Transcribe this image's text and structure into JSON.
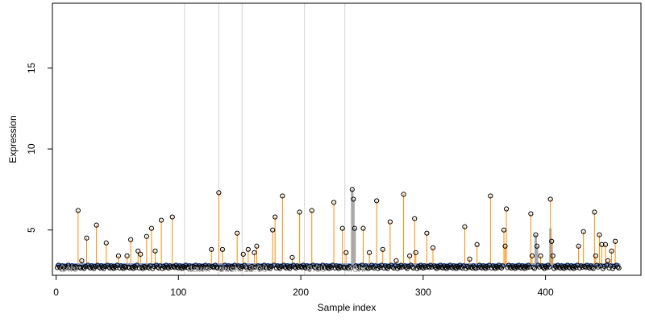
{
  "chart_data": {
    "type": "scatter",
    "xlabel": "Sample index",
    "ylabel": "Expression",
    "xlim": [
      -3,
      478
    ],
    "ylim": [
      2.2,
      19.0
    ],
    "x_ticks": [
      0,
      100,
      200,
      300,
      400
    ],
    "y_ticks": [
      5,
      10,
      15
    ],
    "baseline": 2.85,
    "n_samples": 460,
    "background_values": [
      2.75,
      2.68,
      2.82,
      2.71,
      2.65,
      2.78,
      2.7,
      2.62
    ],
    "vertical_lines": [
      105,
      133,
      152,
      203,
      236
    ],
    "annotations": [
      {
        "x": 3,
        "text": "24hr"
      },
      {
        "x": 107,
        "text": "dawn"
      },
      {
        "x": 133,
        "text": "dusk"
      },
      {
        "x": 153,
        "text": "12:00"
      },
      {
        "x": 205,
        "text": "0:00"
      },
      {
        "x": 238,
        "text": "48hr"
      }
    ],
    "orange_samples": [
      {
        "x": 18,
        "y": 6.2
      },
      {
        "x": 21,
        "y": 3.1
      },
      {
        "x": 25,
        "y": 4.5
      },
      {
        "x": 33,
        "y": 5.3
      },
      {
        "x": 41,
        "y": 4.2
      },
      {
        "x": 51,
        "y": 3.4
      },
      {
        "x": 58,
        "y": 3.4
      },
      {
        "x": 61,
        "y": 4.4
      },
      {
        "x": 67,
        "y": 3.7
      },
      {
        "x": 69,
        "y": 3.5
      },
      {
        "x": 74,
        "y": 4.6
      },
      {
        "x": 78,
        "y": 5.1
      },
      {
        "x": 81,
        "y": 3.7
      },
      {
        "x": 86,
        "y": 5.6
      },
      {
        "x": 95,
        "y": 5.8
      },
      {
        "x": 127,
        "y": 3.8
      },
      {
        "x": 133,
        "y": 7.3
      },
      {
        "x": 136,
        "y": 3.8
      },
      {
        "x": 148,
        "y": 4.8
      },
      {
        "x": 153,
        "y": 3.5
      },
      {
        "x": 157,
        "y": 3.8
      },
      {
        "x": 162,
        "y": 3.6
      },
      {
        "x": 164,
        "y": 4.0
      },
      {
        "x": 177,
        "y": 5.0
      },
      {
        "x": 179,
        "y": 5.8
      },
      {
        "x": 185,
        "y": 7.1
      },
      {
        "x": 193,
        "y": 3.3
      },
      {
        "x": 199,
        "y": 6.1
      },
      {
        "x": 209,
        "y": 6.2
      },
      {
        "x": 227,
        "y": 6.7
      },
      {
        "x": 234,
        "y": 5.1
      },
      {
        "x": 237,
        "y": 3.6
      },
      {
        "x": 251,
        "y": 5.1
      },
      {
        "x": 256,
        "y": 3.6
      },
      {
        "x": 262,
        "y": 6.8
      },
      {
        "x": 267,
        "y": 3.8
      },
      {
        "x": 273,
        "y": 5.5
      },
      {
        "x": 278,
        "y": 3.1
      },
      {
        "x": 284,
        "y": 7.2
      },
      {
        "x": 289,
        "y": 3.4
      },
      {
        "x": 293,
        "y": 5.7
      },
      {
        "x": 294,
        "y": 3.6
      },
      {
        "x": 303,
        "y": 4.8
      },
      {
        "x": 308,
        "y": 3.9
      },
      {
        "x": 334,
        "y": 5.2
      },
      {
        "x": 338,
        "y": 3.2
      },
      {
        "x": 344,
        "y": 4.1
      },
      {
        "x": 355,
        "y": 7.1
      },
      {
        "x": 366,
        "y": 5.0
      },
      {
        "x": 367,
        "y": 4.0
      },
      {
        "x": 368,
        "y": 6.3
      },
      {
        "x": 388,
        "y": 6.0
      },
      {
        "x": 389,
        "y": 3.4
      },
      {
        "x": 396,
        "y": 3.4
      },
      {
        "x": 404,
        "y": 6.9
      },
      {
        "x": 406,
        "y": 3.4
      },
      {
        "x": 427,
        "y": 4.0
      },
      {
        "x": 431,
        "y": 4.9
      },
      {
        "x": 440,
        "y": 6.1
      },
      {
        "x": 441,
        "y": 3.4
      },
      {
        "x": 444,
        "y": 4.7
      },
      {
        "x": 446,
        "y": 4.1
      },
      {
        "x": 449,
        "y": 4.1
      },
      {
        "x": 451,
        "y": 3.1
      },
      {
        "x": 454,
        "y": 3.7
      },
      {
        "x": 457,
        "y": 4.3
      }
    ],
    "gray_samples": [
      {
        "x": 242,
        "y": 7.5
      },
      {
        "x": 243,
        "y": 6.9
      },
      {
        "x": 244,
        "y": 5.1
      },
      {
        "x": 392,
        "y": 4.7
      },
      {
        "x": 393,
        "y": 4.0
      },
      {
        "x": 404,
        "y": 5.1
      },
      {
        "x": 405,
        "y": 4.3
      }
    ],
    "colors": {
      "orange": "#ff8c00",
      "baseline": "#6495ed",
      "gray": "#a9a9a9",
      "vline": "#d3d3d3",
      "annotation": "#a8a8a8"
    }
  }
}
